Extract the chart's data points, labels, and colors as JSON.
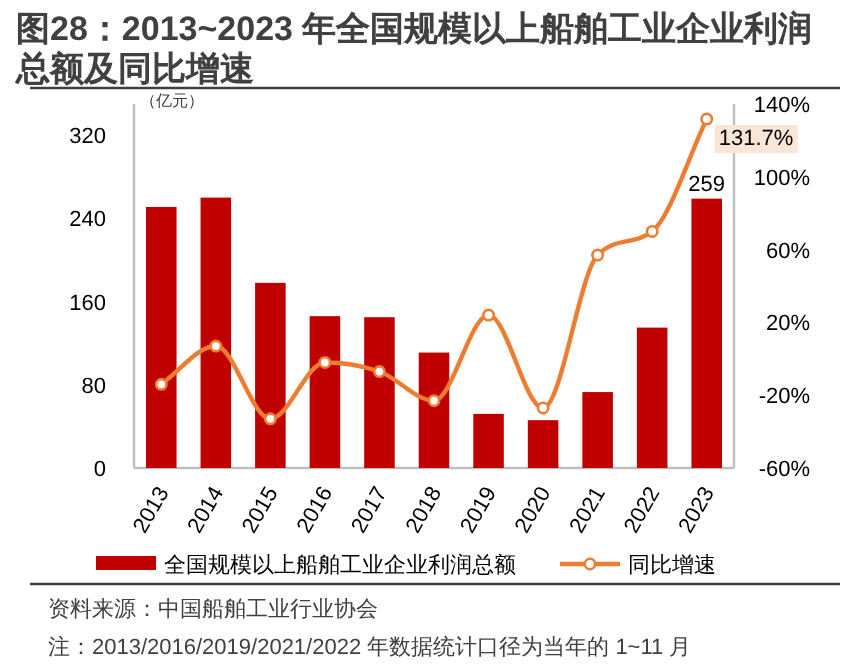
{
  "chart_data": {
    "type": "bar",
    "title": "图28：2013~2023 年全国规模以上船舶工业企业利润总额及同比增速",
    "ylabel": "（亿元）",
    "categories": [
      "2013",
      "2014",
      "2015",
      "2016",
      "2017",
      "2018",
      "2019",
      "2020",
      "2021",
      "2022",
      "2023"
    ],
    "series": [
      {
        "name": "全国规模以上船舶工业企业利润总额",
        "color": "#c00000",
        "values": [
          251,
          260,
          178,
          146,
          145,
          111,
          52,
          46,
          73,
          135,
          259
        ],
        "value_labels": [
          null,
          null,
          null,
          null,
          null,
          null,
          null,
          null,
          null,
          null,
          "259"
        ]
      },
      {
        "name": "同比增速",
        "type": "line",
        "axis": "y2",
        "color": "#ed7d31",
        "marker": "circle",
        "values": [
          -14,
          7,
          -33,
          -2,
          -7,
          -23,
          24,
          -27,
          57,
          70,
          131.7
        ],
        "value_labels": [
          null,
          null,
          null,
          null,
          null,
          null,
          null,
          null,
          null,
          null,
          "131.7%"
        ]
      }
    ],
    "ylim": [
      0,
      350
    ],
    "yticks": [
      0,
      80,
      160,
      240,
      320
    ],
    "y2lim": [
      -60,
      140
    ],
    "y2ticks": [
      {
        "value": -60,
        "label": "-60%"
      },
      {
        "value": -20,
        "label": "-20%"
      },
      {
        "value": 20,
        "label": "20%"
      },
      {
        "value": 60,
        "label": "60%"
      },
      {
        "value": 100,
        "label": "100%"
      },
      {
        "value": 140,
        "label": "140%"
      }
    ],
    "legend": "bottom",
    "annotations": [
      "资料来源：中国船舶工业行业协会",
      "注：2013/2016/2019/2021/2022 年数据统计口径为当年的 1~11 月"
    ]
  }
}
